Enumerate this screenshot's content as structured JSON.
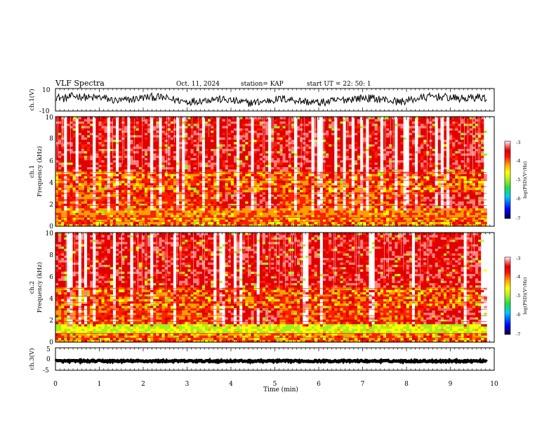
{
  "header": {
    "title": "VLF Spectra",
    "date": "Oct. 11, 2024",
    "station": "station= KAP",
    "start": "start  UT  =   22: 50: 1"
  },
  "chart_data": [
    {
      "type": "line",
      "name": "ch1-waveform",
      "ylabel": "ch.1(V)",
      "yticks": [
        "10",
        "-10"
      ],
      "ylim": [
        -10,
        10
      ],
      "x_range": [
        0,
        9.83
      ],
      "y_profile": [
        2.8,
        1.0,
        3.2,
        2.9,
        1.5,
        2.2,
        0.5,
        -1.0,
        -0.4,
        0.8,
        1.9,
        2.5,
        2.0,
        0.6,
        -0.5,
        -1.6,
        -1.0,
        -0.2,
        0.9,
        0.2,
        -0.8,
        -2.0,
        -2.8,
        -2.1,
        -1.0,
        0.2,
        0.8,
        0.1,
        -1.2,
        -2.2,
        -2.6,
        -1.8,
        -0.7,
        0.3,
        1.1,
        1.6,
        1.2,
        0.5,
        -0.6,
        -1.8,
        -0.8,
        0.9,
        2.1,
        3.0,
        2.4,
        1.7,
        0.9,
        1.4,
        2.3,
        1.6
      ],
      "amplitude": 3.5
    },
    {
      "type": "heatmap",
      "name": "ch1-spectrogram",
      "ylabel": "ch.1\nFrequency  (kHz)",
      "yticks": [
        "10",
        "8",
        "6",
        "4",
        "2",
        "0"
      ],
      "ylim": [
        0,
        10
      ],
      "x_range": [
        0,
        9.83
      ],
      "colorbar": {
        "ticks": [
          "-3",
          "-4",
          "-5",
          "-6",
          "-7"
        ],
        "range": [
          -7,
          -3
        ],
        "label": "log(PSD)(V²/Hz)"
      }
    },
    {
      "type": "heatmap",
      "name": "ch2-spectrogram",
      "ylabel": "ch.2\nFrequency  (kHz)",
      "yticks": [
        "10",
        "8",
        "6",
        "4",
        "2",
        "0"
      ],
      "ylim": [
        0,
        10
      ],
      "x_range": [
        0,
        9.83
      ],
      "colorbar": {
        "ticks": [
          "-3",
          "-4",
          "-5",
          "-6",
          "-7"
        ],
        "range": [
          -7,
          -3
        ],
        "label": "log(PSD)(V²/Hz)"
      }
    },
    {
      "type": "line",
      "name": "ch3-waveform",
      "ylabel": "ch.3(V)",
      "yticks": [
        "5",
        "0",
        "-5"
      ],
      "ylim": [
        -5,
        5
      ],
      "x_range": [
        0,
        9.83
      ],
      "y_profile": [
        -0.9,
        -0.9
      ],
      "amplitude": 0.35
    }
  ],
  "xaxis": {
    "label": "Time  (min)",
    "range": [
      0,
      10
    ],
    "ticks": [
      "0",
      "1",
      "2",
      "3",
      "4",
      "5",
      "6",
      "7",
      "8",
      "9",
      "10"
    ]
  },
  "colors": {
    "colormap": [
      "#000080",
      "#0000ff",
      "#0080ff",
      "#00e0ff",
      "#20e040",
      "#a0f020",
      "#ffff00",
      "#ffa000",
      "#ff2000",
      "#e00000",
      "#ff8080",
      "#ffffff"
    ]
  }
}
